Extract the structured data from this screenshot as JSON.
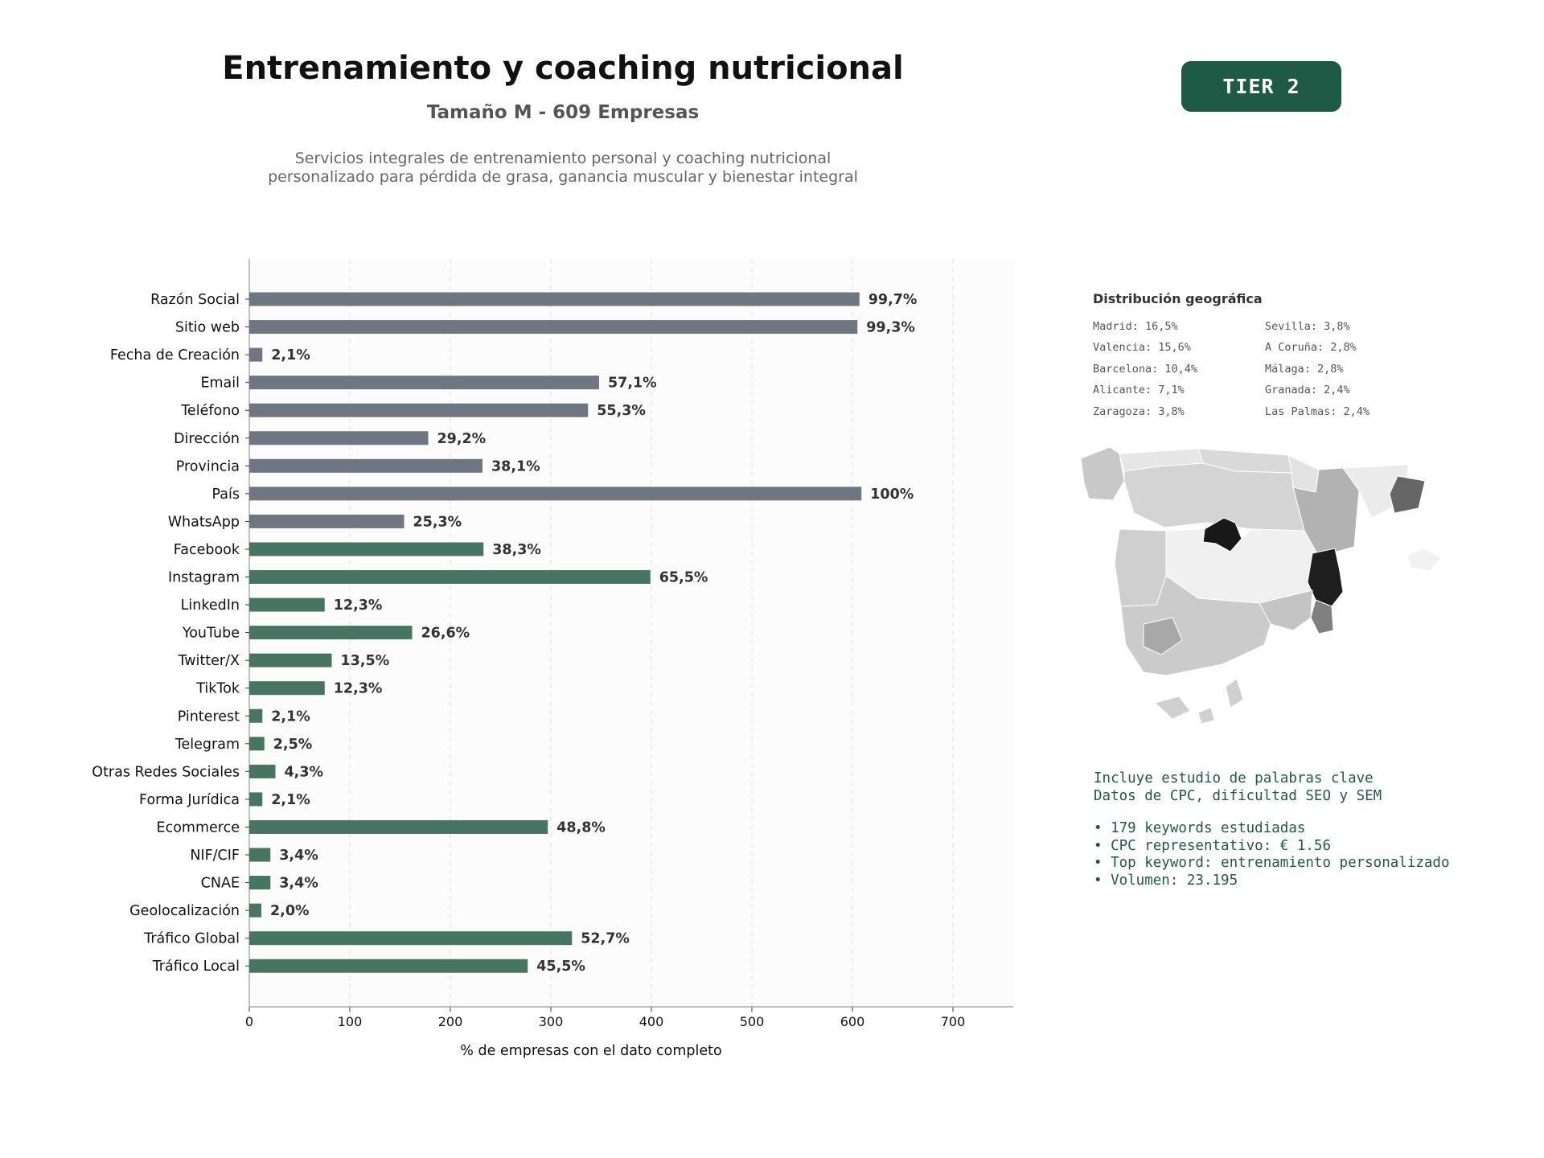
{
  "header": {
    "title": "Entrenamiento y coaching nutricional",
    "subtitle": "Tamaño M - 609 Empresas",
    "description": "Servicios integrales de entrenamiento personal y coaching nutricional personalizado para pérdida de grasa, ganancia muscular y bienestar integral",
    "tier_badge": "TIER 2"
  },
  "chart_data": {
    "type": "bar",
    "orientation": "horizontal",
    "xlabel": "% de empresas con el dato completo",
    "xlim": [
      0,
      760
    ],
    "xticks": [
      0,
      100,
      200,
      300,
      400,
      500,
      600,
      700
    ],
    "grid": "vertical dashed",
    "colors": {
      "contact": "#6e7781",
      "digital": "#467563"
    },
    "categories": [
      "Razón Social",
      "Sitio web",
      "Fecha de Creación",
      "Email",
      "Teléfono",
      "Dirección",
      "Provincia",
      "País",
      "WhatsApp",
      "Facebook",
      "Instagram",
      "LinkedIn",
      "YouTube",
      "Twitter/X",
      "TikTok",
      "Pinterest",
      "Telegram",
      "Otras Redes Sociales",
      "Forma Jurídica",
      "Ecommerce",
      "NIF/CIF",
      "CNAE",
      "Geolocalización",
      "Tráfico Global",
      "Tráfico Local"
    ],
    "values": [
      607,
      605,
      13,
      348,
      337,
      178,
      232,
      609,
      154,
      233,
      399,
      75,
      162,
      82,
      75,
      13,
      15,
      26,
      13,
      297,
      21,
      21,
      12,
      321,
      277
    ],
    "labels": [
      "99,7%",
      "99,3%",
      "2,1%",
      "57,1%",
      "55,3%",
      "29,2%",
      "38,1%",
      "100%",
      "25,3%",
      "38,3%",
      "65,5%",
      "12,3%",
      "26,6%",
      "13,5%",
      "12,3%",
      "2,1%",
      "2,5%",
      "4,3%",
      "2,1%",
      "48,8%",
      "3,4%",
      "3,4%",
      "2,0%",
      "52,7%",
      "45,5%"
    ],
    "groups": [
      "contact",
      "contact",
      "contact",
      "contact",
      "contact",
      "contact",
      "contact",
      "contact",
      "contact",
      "digital",
      "digital",
      "digital",
      "digital",
      "digital",
      "digital",
      "digital",
      "digital",
      "digital",
      "digital",
      "digital",
      "digital",
      "digital",
      "digital",
      "digital",
      "digital"
    ]
  },
  "geo": {
    "title": "Distribución geográfica",
    "items": [
      "Madrid: 16,5%",
      "Sevilla: 3,8%",
      "Valencia: 15,6%",
      "A Coruña: 2,8%",
      "Barcelona: 10,4%",
      "Málaga: 2,8%",
      "Alicante: 7,1%",
      "Granada: 2,4%",
      "Zaragoza: 3,8%",
      "Las Palmas: 2,4%"
    ]
  },
  "keywords": {
    "line1": "Incluye estudio de palabras clave",
    "line2": "Datos de CPC, dificultad SEO y SEM",
    "bullet1": "• 179 keywords estudiadas",
    "bullet2": "• CPC representativo: € 1.56",
    "bullet3": "• Top keyword: entrenamiento personalizado",
    "bullet4": "• Volumen: 23.195"
  }
}
